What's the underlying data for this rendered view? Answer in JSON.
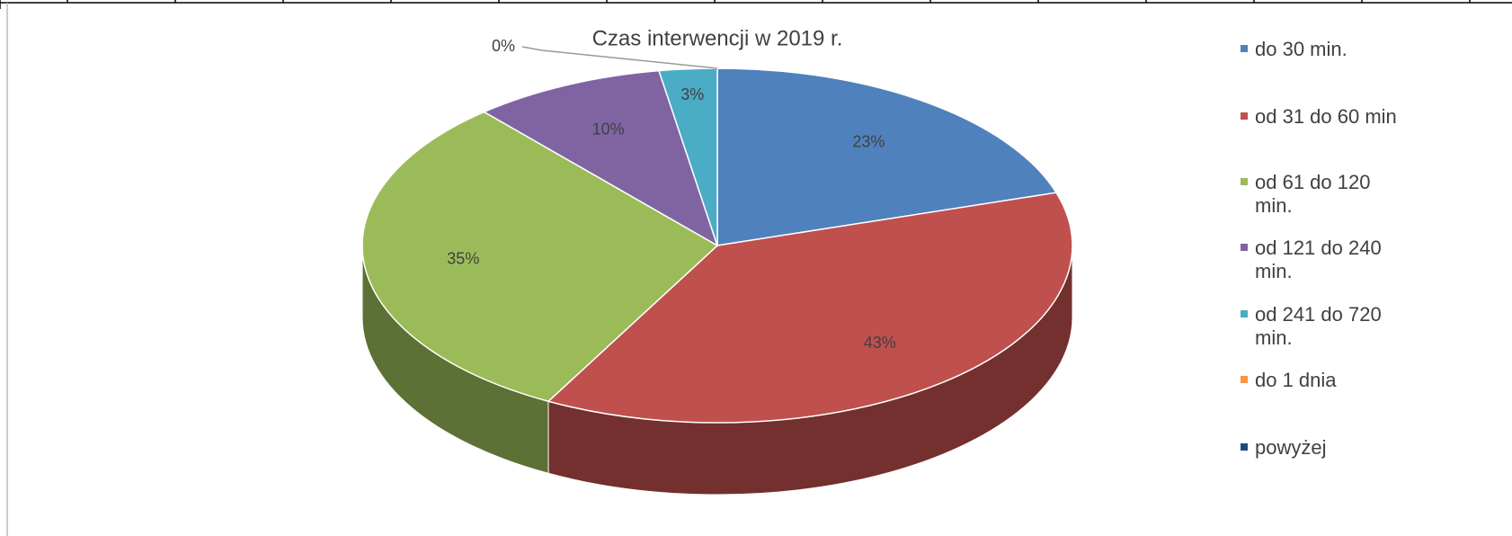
{
  "chart_data": {
    "type": "pie",
    "title": "Czas interwencji w 2019 r.",
    "categories": [
      "do 30 min.",
      "od 31 do 60 min",
      "od 61 do 120 min.",
      "od 121 do 240 min.",
      "od 241 do 720 min.",
      "do 1 dnia",
      "powyżej"
    ],
    "values": [
      23,
      43,
      35,
      10,
      3,
      0,
      null
    ],
    "value_labels": [
      "23%",
      "43%",
      "35%",
      "10%",
      "3%",
      "0%",
      null
    ],
    "colors": [
      "#4f81bd",
      "#c0504d",
      "#9bbb59",
      "#8064a2",
      "#4bacc6",
      "#f79646",
      "#1f497d"
    ],
    "legend": "right"
  }
}
